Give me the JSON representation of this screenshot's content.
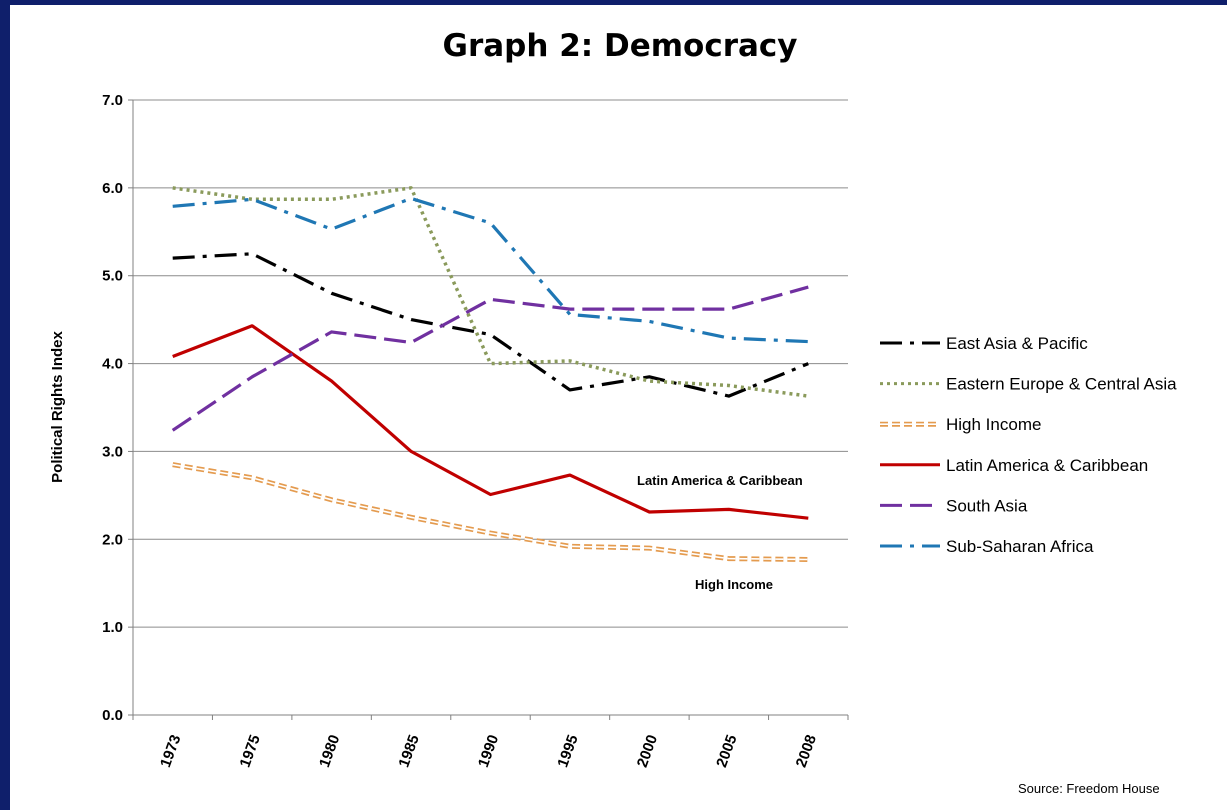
{
  "chart_data": {
    "type": "line",
    "title": "Graph 2: Democracy",
    "ylabel": "Political Rights Index",
    "xlabel": "",
    "categories": [
      "1973",
      "1975",
      "1980",
      "1985",
      "1990",
      "1995",
      "2000",
      "2005",
      "2008"
    ],
    "ylim": [
      0,
      7
    ],
    "yticks": [
      "0.0",
      "1.0",
      "2.0",
      "3.0",
      "4.0",
      "5.0",
      "6.0",
      "7.0"
    ],
    "grid": "horizontal",
    "legend_position": "right",
    "series": [
      {
        "name": "East Asia & Pacific",
        "color": "#000000",
        "dash": "22,8,4,8",
        "values": [
          5.2,
          5.25,
          4.8,
          4.5,
          4.33,
          3.7,
          3.85,
          3.63,
          4.0
        ]
      },
      {
        "name": "Eastern Europe & Central Asia",
        "color": "#8a9a5b",
        "dash": "3,4",
        "values": [
          6.0,
          5.87,
          5.87,
          6.0,
          4.0,
          4.03,
          3.8,
          3.75,
          3.63
        ]
      },
      {
        "name": "High Income",
        "color": "#e49b4f",
        "dash": "8,4",
        "double": true,
        "values": [
          2.85,
          2.7,
          2.45,
          2.25,
          2.07,
          1.92,
          1.9,
          1.78,
          1.77
        ]
      },
      {
        "name": "Latin America & Caribbean",
        "color": "#c00000",
        "dash": "",
        "values": [
          4.08,
          4.43,
          3.8,
          3.0,
          2.51,
          2.73,
          2.31,
          2.34,
          2.24
        ]
      },
      {
        "name": "South Asia",
        "color": "#7030a0",
        "dash": "22,8",
        "values": [
          3.24,
          3.85,
          4.36,
          4.24,
          4.73,
          4.62,
          4.62,
          4.62,
          4.87
        ]
      },
      {
        "name": "Sub-Saharan Africa",
        "color": "#1f77b4",
        "dash": "22,8,4,8",
        "values": [
          5.79,
          5.87,
          5.53,
          5.88,
          5.6,
          4.56,
          4.48,
          4.29,
          4.25
        ]
      }
    ],
    "annotations": [
      "Latin America  & Caribbean",
      "High Income"
    ]
  },
  "source": "Source: Freedom House"
}
